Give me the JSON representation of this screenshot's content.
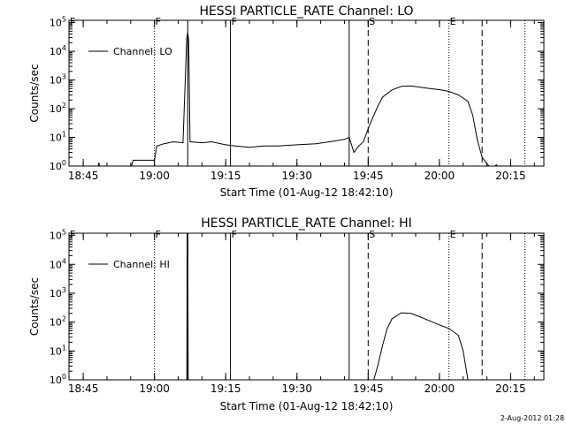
{
  "footer_timestamp": "2-Aug-2012 01:28",
  "chart_data": [
    {
      "type": "line",
      "title": "HESSI PARTICLE_RATE Channel: LO",
      "xlabel": "Start Time (01-Aug-12 18:42:10)",
      "ylabel": "Counts/sec",
      "y_scale": "log",
      "ylim": [
        1,
        120000
      ],
      "xlim": [
        "18:42",
        "20:22"
      ],
      "x_ticks": [
        "18:45",
        "19:00",
        "19:15",
        "19:30",
        "19:45",
        "20:00",
        "20:15"
      ],
      "y_ticks": [
        "10^0",
        "10^1",
        "10^2",
        "10^3",
        "10^4",
        "10^5"
      ],
      "legend": "Channel: LO",
      "legend_position": "upper-left",
      "markers": [
        {
          "label": "F",
          "x": "18:42",
          "style": "dotted"
        },
        {
          "label": "F",
          "x": "19:00",
          "style": "dotted"
        },
        {
          "label": "",
          "x": "19:07",
          "style": "solid"
        },
        {
          "label": "F",
          "x": "19:16",
          "style": "solid"
        },
        {
          "label": "",
          "x": "19:41",
          "style": "solid"
        },
        {
          "label": "S",
          "x": "19:45",
          "style": "dashed"
        },
        {
          "label": "E",
          "x": "20:02",
          "style": "dotted"
        },
        {
          "label": "",
          "x": "20:09",
          "style": "dashed"
        },
        {
          "label": "",
          "x": "20:18",
          "style": "dotted"
        }
      ],
      "series": [
        {
          "values": [
            [
              "18:42",
              1
            ],
            [
              "18:43",
              1
            ],
            [
              "18:43.5",
              0.85
            ],
            [
              "18:44",
              1
            ],
            [
              "18:44.5",
              0.8
            ],
            [
              "18:48",
              0.8
            ],
            [
              "18:48.3",
              1.3
            ],
            [
              "18:48.6",
              0.8
            ],
            [
              "18:55",
              0.8
            ],
            [
              "18:55.5",
              1.6
            ],
            [
              "18:59",
              1.6
            ],
            [
              "19:00",
              1.6
            ],
            [
              "19:00.5",
              5
            ],
            [
              "19:02",
              6
            ],
            [
              "19:04",
              7
            ],
            [
              "19:06",
              6.5
            ],
            [
              "19:06.8",
              30000
            ],
            [
              "19:07",
              45000
            ],
            [
              "19:07.2",
              25000
            ],
            [
              "19:07.5",
              7
            ],
            [
              "19:10",
              6.5
            ],
            [
              "19:12",
              7
            ],
            [
              "19:15",
              5.5
            ],
            [
              "19:17",
              5
            ],
            [
              "19:20",
              4.5
            ],
            [
              "19:23",
              5
            ],
            [
              "19:26",
              5
            ],
            [
              "19:30",
              5.5
            ],
            [
              "19:34",
              6
            ],
            [
              "19:38",
              7.5
            ],
            [
              "19:40",
              8.5
            ],
            [
              "19:41",
              10
            ],
            [
              "19:42",
              3
            ],
            [
              "19:43",
              5
            ],
            [
              "19:44",
              7
            ],
            [
              "19:45",
              20
            ],
            [
              "19:46",
              50
            ],
            [
              "19:47",
              120
            ],
            [
              "19:48",
              250
            ],
            [
              "19:50",
              450
            ],
            [
              "19:52",
              600
            ],
            [
              "19:54",
              620
            ],
            [
              "19:56",
              560
            ],
            [
              "19:58",
              500
            ],
            [
              "20:00",
              460
            ],
            [
              "20:02",
              400
            ],
            [
              "20:04",
              300
            ],
            [
              "20:06",
              180
            ],
            [
              "20:07",
              60
            ],
            [
              "20:08",
              8
            ],
            [
              "20:09",
              2
            ],
            [
              "20:10",
              1.2
            ],
            [
              "20:11",
              0.8
            ],
            [
              "20:12",
              1.1
            ],
            [
              "20:13",
              0.7
            ],
            [
              "20:14",
              1
            ]
          ]
        }
      ]
    },
    {
      "type": "line",
      "title": "HESSI PARTICLE_RATE Channel: HI",
      "xlabel": "Start Time (01-Aug-12 18:42:10)",
      "ylabel": "Counts/sec",
      "y_scale": "log",
      "ylim": [
        1,
        120000
      ],
      "xlim": [
        "18:42",
        "20:22"
      ],
      "x_ticks": [
        "18:45",
        "19:00",
        "19:15",
        "19:30",
        "19:45",
        "20:00",
        "20:15"
      ],
      "y_ticks": [
        "10^0",
        "10^1",
        "10^2",
        "10^3",
        "10^4",
        "10^5"
      ],
      "legend": "Channel: HI",
      "legend_position": "upper-left",
      "markers": [
        {
          "label": "F",
          "x": "18:42",
          "style": "dotted"
        },
        {
          "label": "F",
          "x": "19:00",
          "style": "dotted"
        },
        {
          "label": "",
          "x": "19:07",
          "style": "solid"
        },
        {
          "label": "F",
          "x": "19:16",
          "style": "solid"
        },
        {
          "label": "",
          "x": "19:41",
          "style": "solid"
        },
        {
          "label": "S",
          "x": "19:45",
          "style": "dashed"
        },
        {
          "label": "E",
          "x": "20:02",
          "style": "dotted"
        },
        {
          "label": "",
          "x": "20:09",
          "style": "dashed"
        },
        {
          "label": "",
          "x": "20:18",
          "style": "dotted"
        }
      ],
      "series": [
        {
          "values": [
            [
              "19:06.8",
              0.5
            ],
            [
              "19:06.9",
              150000
            ],
            [
              "19:07",
              150000
            ],
            [
              "19:07.1",
              0.5
            ]
          ]
        },
        {
          "values": [
            [
              "19:46",
              0.8
            ],
            [
              "19:47",
              3
            ],
            [
              "19:48",
              15
            ],
            [
              "19:49",
              60
            ],
            [
              "19:50",
              130
            ],
            [
              "19:52",
              210
            ],
            [
              "19:54",
              200
            ],
            [
              "19:56",
              150
            ],
            [
              "19:58",
              110
            ],
            [
              "20:00",
              80
            ],
            [
              "20:02",
              60
            ],
            [
              "20:04",
              35
            ],
            [
              "20:05",
              10
            ],
            [
              "20:06",
              1
            ],
            [
              "20:06.5",
              0.6
            ]
          ]
        }
      ]
    }
  ]
}
